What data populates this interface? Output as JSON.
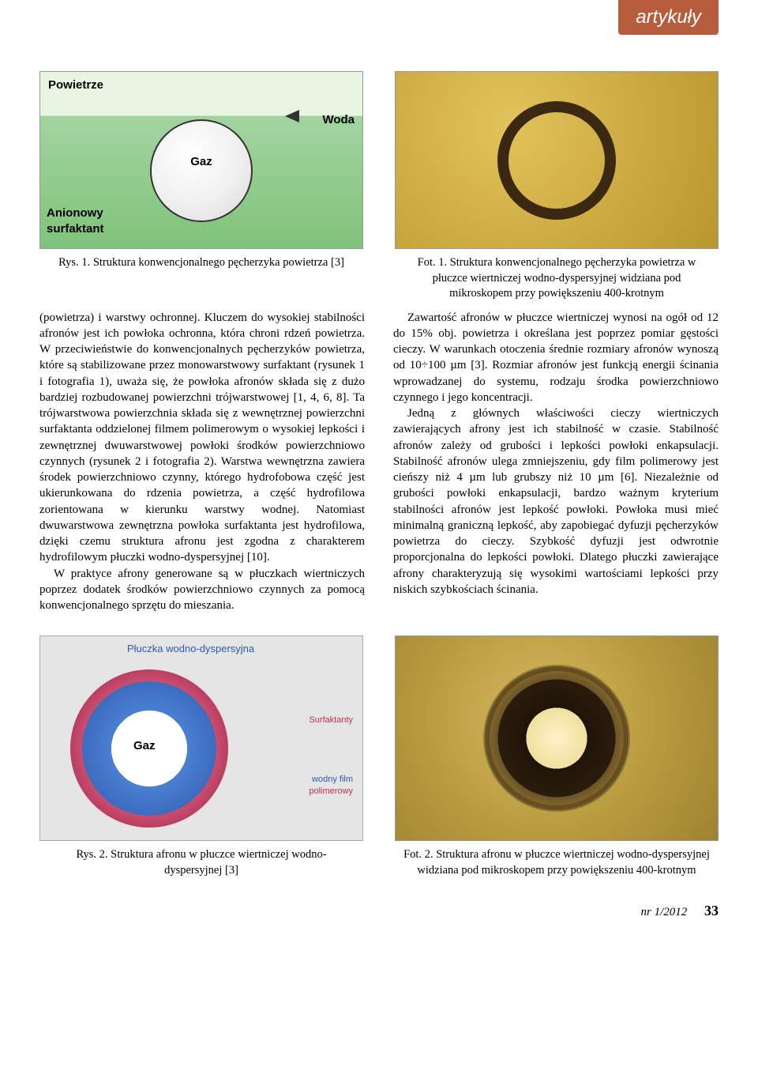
{
  "header": {
    "tab": "artykuły"
  },
  "fig1": {
    "labels": {
      "powietrze": "Powietrze",
      "gaz": "Gaz",
      "woda": "Woda",
      "anionowy": "Anionowy",
      "surfaktant": "surfaktant"
    },
    "caption": "Rys. 1. Struktura konwencjonalnego pęcherzyka powietrza [3]"
  },
  "photo1": {
    "caption": "Fot. 1. Struktura konwencjonalnego pęcherzyka powietrza w płuczce wiertniczej wodno-dyspersyjnej widziana pod mikroskopem przy powiększeniu 400-krotnym"
  },
  "body": {
    "p1": "(powietrza) i warstwy ochronnej. Kluczem do wysokiej stabilności afronów jest ich powłoka ochronna, która chroni rdzeń powietrza. W przeciwieństwie do konwencjonalnych pęcherzyków powietrza, które są stabilizowane przez monowarstwowy surfaktant (rysunek 1 i fotografia 1), uważa się, że powłoka afronów składa się z dużo bardziej rozbudowanej powierzchni trójwarstwowej [1, 4, 6, 8]. Ta trójwarstwowa powierzchnia składa się z wewnętrznej powierzchni surfaktanta oddzielonej filmem polimerowym o wysokiej lepkości i zewnętrznej dwuwarstwowej powłoki środków powierzchniowo czynnych (rysunek 2 i fotografia 2). Warstwa wewnętrzna zawiera środek powierzchniowo czynny, którego hydrofobowa część jest ukierunkowana do rdzenia powietrza, a część hydrofilowa zorientowana w kierunku warstwy wodnej. Natomiast dwuwarstwowa zewnętrzna powłoka surfaktanta jest hydrofilowa, dzięki czemu struktura afronu jest zgodna z charakterem hydrofilowym płuczki wodno-dyspersyjnej [10].",
    "p2": "W praktyce afrony generowane są w płuczkach wiertniczych poprzez dodatek środków powierzchniowo czynnych za pomocą konwencjonalnego sprzętu do mieszania.",
    "p3": "Zawartość afronów w płuczce wiertniczej wynosi na ogół od 12 do 15% obj. powietrza i określana jest poprzez pomiar gęstości cieczy. W warunkach otoczenia średnie rozmiary afronów wynoszą od 10÷100 µm [3]. Rozmiar afronów jest funkcją energii ścinania wprowadzanej do systemu, rodzaju środka powierzchniowo czynnego i jego koncentracji.",
    "p4": "Jedną z głównych właściwości cieczy wiertniczych zawierających afrony jest ich stabilność w czasie. Stabilność afronów zależy od grubości i lepkości powłoki enkapsulacji. Stabilność afronów ulega zmniejszeniu, gdy film polimerowy jest cieńszy niż 4 µm lub grubszy niż 10 µm [6]. Niezależnie od grubości powłoki enkapsulacji, bardzo ważnym kryterium stabilności afronów jest lepkość powłoki. Powłoka musi mieć minimalną graniczną lepkość, aby zapobiegać dyfuzji pęcherzyków powietrza do cieczy. Szybkość dyfuzji jest odwrotnie proporcjonalna do lepkości powłoki. Dlatego płuczki zawierające afrony charakteryzują się wysokimi wartościami lepkości przy niskich szybkościach ścinania."
  },
  "fig2": {
    "title": "Płuczka wodno-dyspersyjna",
    "gaz": "Gaz",
    "legend": {
      "surfaktanty": "Surfaktanty",
      "film": "wodny film",
      "polimerowy": "polimerowy"
    },
    "caption": "Rys. 2. Struktura afronu w płuczce wiertniczej wodno-dyspersyjnej [3]"
  },
  "photo2": {
    "caption": "Fot. 2. Struktura afronu w płuczce wiertniczej wodno-dyspersyjnej widziana pod mikroskopem przy powiększeniu 400-krotnym"
  },
  "footer": {
    "issue": "nr 1/2012",
    "page": "33"
  }
}
